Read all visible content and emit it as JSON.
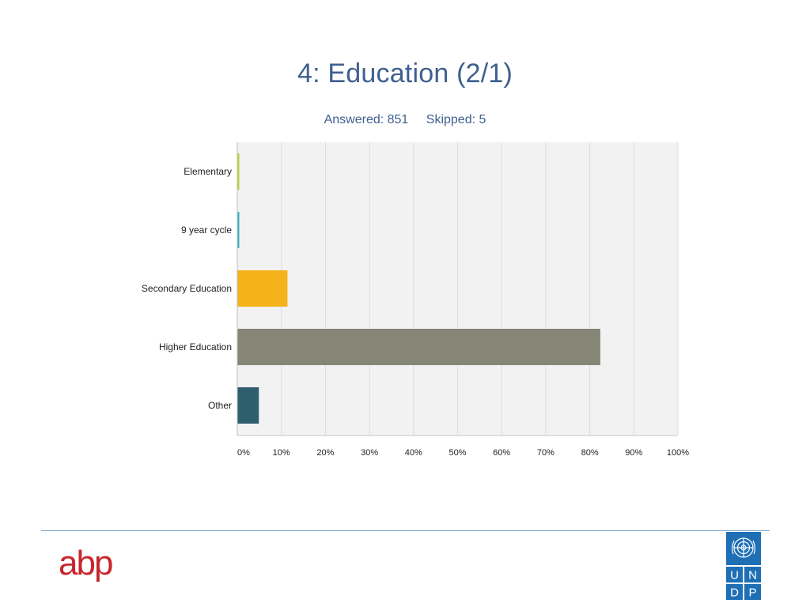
{
  "slide": {
    "title": "4: Education (2/1)",
    "answered": "Answered: 851",
    "skipped": "Skipped: 5"
  },
  "chart_data": {
    "type": "bar",
    "orientation": "horizontal",
    "categories": [
      "Elementary",
      "9 year cycle",
      "Secondary Education",
      "Higher Education",
      "Other"
    ],
    "values": [
      0.3,
      0.3,
      11.3,
      82.3,
      4.8
    ],
    "colors": [
      "#b5d336",
      "#34b3ba",
      "#f6b21a",
      "#868677",
      "#2e5f6d"
    ],
    "value_unit": "%",
    "xlim": [
      0,
      100
    ],
    "xticks": [
      "0%",
      "10%",
      "20%",
      "30%",
      "40%",
      "50%",
      "60%",
      "70%",
      "80%",
      "90%",
      "100%"
    ],
    "grid": "vertical",
    "background": "#f2f2f2"
  },
  "footer": {
    "logo_left": "abp",
    "logo_right_letters": [
      "U",
      "N",
      "D",
      "P"
    ],
    "logo_right_color": "#1f6fb5"
  }
}
